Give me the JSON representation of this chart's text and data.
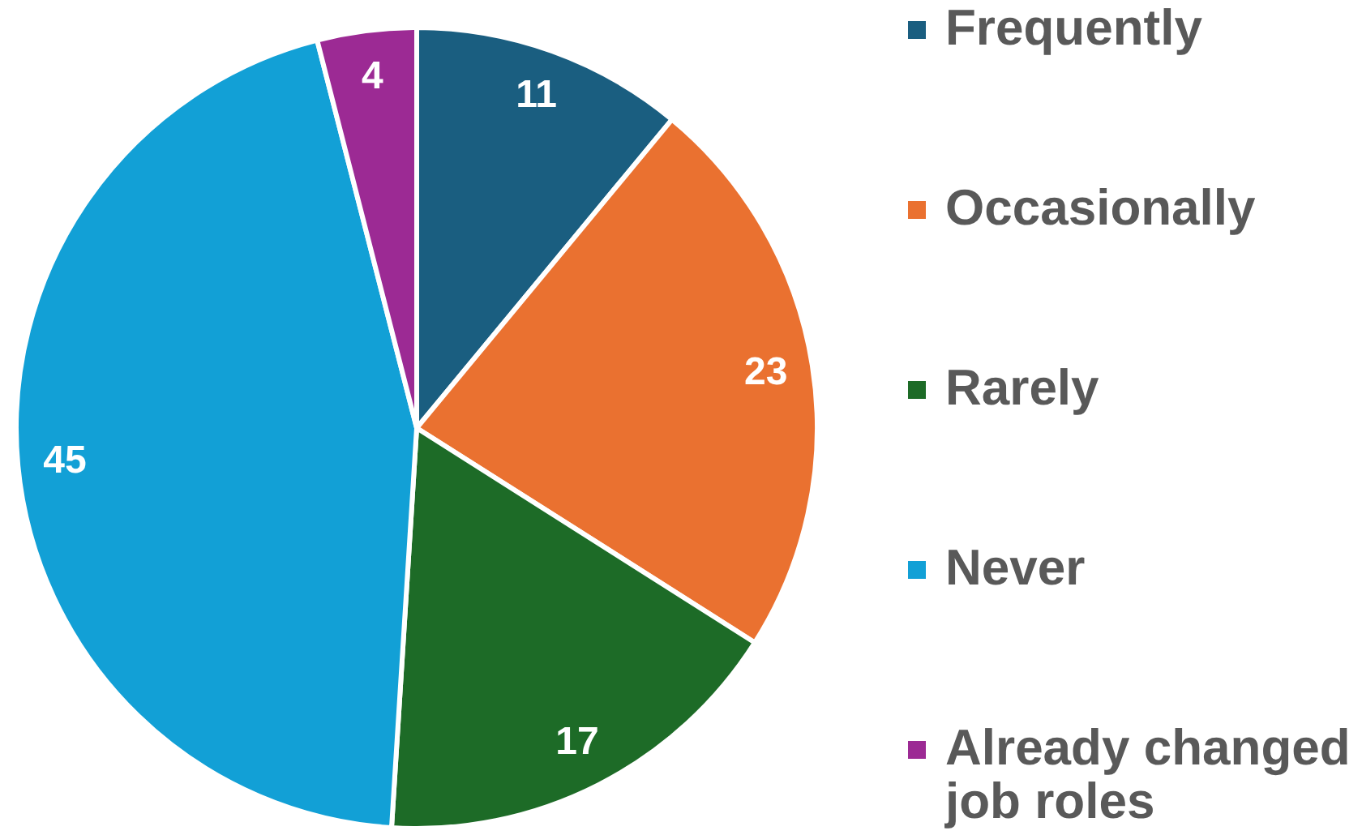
{
  "chart_data": {
    "type": "pie",
    "categories": [
      "Frequently",
      "Occasionally",
      "Rarely",
      "Never",
      "Already changed job roles"
    ],
    "values": [
      11,
      23,
      17,
      45,
      4
    ],
    "colors": [
      "#1a5e80",
      "#ea7130",
      "#1d6b27",
      "#12a0d6",
      "#9c2a94"
    ],
    "data_labels": true,
    "legend": "right"
  }
}
